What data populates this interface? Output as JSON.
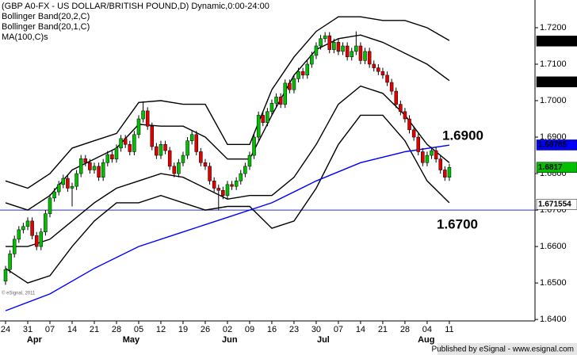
{
  "chart_data": {
    "type": "candlestick",
    "title": "(GBP A0-FX - US DOLLAR/BRITISH POUND,D) Dynamic,0:00-24:00",
    "watermark": "© eSignal, 2011",
    "footer": "Published by eSignal - www.esignal.com",
    "up_color": "#00c000",
    "down_color": "#e00000",
    "xlim": [
      -1.25,
      119.3
    ],
    "ylim": [
      1.6396,
      1.7276
    ],
    "grid": false,
    "yticks": [
      {
        "value": 1.64,
        "label": "1.6400"
      },
      {
        "value": 1.65,
        "label": "1.6500"
      },
      {
        "value": 1.66,
        "label": "1.6600"
      },
      {
        "value": 1.67,
        "label": "1.6700"
      },
      {
        "value": 1.68,
        "label": "1.6800"
      },
      {
        "value": 1.69,
        "label": "1.6900"
      },
      {
        "value": 1.7,
        "label": "1.7000"
      },
      {
        "value": 1.71,
        "label": "1.7100"
      },
      {
        "value": 1.72,
        "label": "1.7200"
      }
    ],
    "xticks": [
      {
        "value": 0,
        "label": "24"
      },
      {
        "value": 5,
        "label": "31"
      },
      {
        "value": 10,
        "label": "07"
      },
      {
        "value": 15,
        "label": "14"
      },
      {
        "value": 20,
        "label": "21"
      },
      {
        "value": 25,
        "label": "28"
      },
      {
        "value": 30,
        "label": "05"
      },
      {
        "value": 35,
        "label": "12"
      },
      {
        "value": 40,
        "label": "19"
      },
      {
        "value": 45,
        "label": "26"
      },
      {
        "value": 50,
        "label": "02"
      },
      {
        "value": 55,
        "label": "09"
      },
      {
        "value": 60,
        "label": "16"
      },
      {
        "value": 65,
        "label": "23"
      },
      {
        "value": 70,
        "label": "30"
      },
      {
        "value": 75,
        "label": "07"
      },
      {
        "value": 80,
        "label": "14"
      },
      {
        "value": 85,
        "label": "21"
      },
      {
        "value": 90,
        "label": "28"
      },
      {
        "value": 95,
        "label": "04"
      },
      {
        "value": 100,
        "label": "11"
      }
    ],
    "month_ticks": [
      {
        "value": 6.5,
        "label": "Apr"
      },
      {
        "value": 28.3,
        "label": "May"
      },
      {
        "value": 50.5,
        "label": "Jun"
      },
      {
        "value": 71.6,
        "label": "Jul"
      },
      {
        "value": 94.8,
        "label": "Aug"
      }
    ],
    "candles": {
      "open": [
        1.6505,
        1.6537,
        1.658,
        1.662,
        1.6646,
        1.6655,
        1.667,
        1.663,
        1.66,
        1.664,
        1.669,
        1.6733,
        1.675,
        1.677,
        1.6787,
        1.676,
        1.6765,
        1.68,
        1.6841,
        1.683,
        1.681,
        1.682,
        1.679,
        1.683,
        1.6852,
        1.684,
        1.687,
        1.6896,
        1.688,
        1.686,
        1.6907,
        1.695,
        1.6972,
        1.693,
        1.6874,
        1.685,
        1.688,
        1.6863,
        1.682,
        1.68,
        1.683,
        1.685,
        1.689,
        1.6907,
        1.686,
        1.683,
        1.682,
        1.678,
        1.676,
        1.6754,
        1.674,
        1.677,
        1.6765,
        1.678,
        1.68,
        1.682,
        1.685,
        1.69,
        1.696,
        1.694,
        1.697,
        1.6993,
        1.701,
        1.699,
        1.7048,
        1.703,
        1.706,
        1.708,
        1.707,
        1.71,
        1.7124,
        1.715,
        1.717,
        1.7178,
        1.714,
        1.716,
        1.7135,
        1.715,
        1.712,
        1.7135,
        1.715,
        1.711,
        1.7135,
        1.71,
        1.709,
        1.708,
        1.707,
        1.705,
        1.7026,
        1.699,
        1.697,
        1.695,
        1.692,
        1.69,
        1.686,
        1.683,
        1.685,
        1.6863,
        1.684,
        1.681,
        1.679
      ],
      "high": [
        1.6547,
        1.659,
        1.663,
        1.6656,
        1.6665,
        1.668,
        1.668,
        1.664,
        1.665,
        1.67,
        1.6743,
        1.676,
        1.678,
        1.6797,
        1.6797,
        1.6775,
        1.681,
        1.6851,
        1.6851,
        1.684,
        1.683,
        1.683,
        1.684,
        1.6862,
        1.6862,
        1.688,
        1.6906,
        1.6906,
        1.689,
        1.6917,
        1.696,
        1.6998,
        1.6982,
        1.694,
        1.6884,
        1.689,
        1.689,
        1.6873,
        1.683,
        1.684,
        1.686,
        1.69,
        1.6917,
        1.6917,
        1.687,
        1.684,
        1.683,
        1.679,
        1.677,
        1.6764,
        1.678,
        1.678,
        1.679,
        1.681,
        1.683,
        1.686,
        1.691,
        1.697,
        1.697,
        1.698,
        1.7003,
        1.702,
        1.702,
        1.7058,
        1.7058,
        1.707,
        1.709,
        1.709,
        1.711,
        1.7134,
        1.716,
        1.718,
        1.7188,
        1.7188,
        1.717,
        1.717,
        1.716,
        1.716,
        1.7145,
        1.719,
        1.716,
        1.7145,
        1.7145,
        1.711,
        1.71,
        1.709,
        1.708,
        1.706,
        1.7036,
        1.7,
        1.698,
        1.696,
        1.693,
        1.691,
        1.687,
        1.686,
        1.6873,
        1.6873,
        1.685,
        1.682,
        1.6827
      ],
      "low": [
        1.6495,
        1.6527,
        1.657,
        1.661,
        1.6636,
        1.6645,
        1.662,
        1.659,
        1.659,
        1.663,
        1.668,
        1.6723,
        1.674,
        1.676,
        1.675,
        1.671,
        1.6755,
        1.679,
        1.682,
        1.68,
        1.68,
        1.678,
        1.678,
        1.682,
        1.683,
        1.683,
        1.686,
        1.687,
        1.685,
        1.685,
        1.6897,
        1.694,
        1.692,
        1.6864,
        1.684,
        1.684,
        1.6853,
        1.681,
        1.679,
        1.679,
        1.682,
        1.684,
        1.688,
        1.685,
        1.682,
        1.681,
        1.677,
        1.675,
        1.67,
        1.673,
        1.673,
        1.6755,
        1.6755,
        1.677,
        1.679,
        1.681,
        1.684,
        1.689,
        1.693,
        1.693,
        1.696,
        1.6983,
        1.698,
        1.698,
        1.702,
        1.702,
        1.705,
        1.706,
        1.706,
        1.709,
        1.7114,
        1.714,
        1.716,
        1.713,
        1.713,
        1.7125,
        1.7125,
        1.711,
        1.711,
        1.7125,
        1.71,
        1.71,
        1.709,
        1.708,
        1.707,
        1.706,
        1.704,
        1.7016,
        1.698,
        1.696,
        1.694,
        1.691,
        1.689,
        1.685,
        1.682,
        1.682,
        1.684,
        1.683,
        1.68,
        1.678,
        1.678
      ],
      "close": [
        1.6537,
        1.658,
        1.662,
        1.6646,
        1.6655,
        1.667,
        1.663,
        1.66,
        1.664,
        1.669,
        1.6733,
        1.675,
        1.677,
        1.6787,
        1.676,
        1.6765,
        1.68,
        1.6841,
        1.683,
        1.681,
        1.682,
        1.679,
        1.683,
        1.6852,
        1.684,
        1.687,
        1.6896,
        1.688,
        1.686,
        1.6907,
        1.695,
        1.6972,
        1.693,
        1.6874,
        1.685,
        1.688,
        1.6863,
        1.682,
        1.68,
        1.683,
        1.685,
        1.689,
        1.6907,
        1.686,
        1.683,
        1.682,
        1.678,
        1.676,
        1.6754,
        1.674,
        1.677,
        1.6765,
        1.678,
        1.68,
        1.682,
        1.685,
        1.69,
        1.696,
        1.694,
        1.697,
        1.6993,
        1.701,
        1.699,
        1.7048,
        1.703,
        1.706,
        1.708,
        1.707,
        1.71,
        1.7124,
        1.715,
        1.717,
        1.7178,
        1.714,
        1.716,
        1.7135,
        1.715,
        1.712,
        1.7135,
        1.715,
        1.711,
        1.7135,
        1.71,
        1.709,
        1.708,
        1.707,
        1.705,
        1.7026,
        1.699,
        1.697,
        1.695,
        1.692,
        1.69,
        1.686,
        1.683,
        1.685,
        1.6863,
        1.684,
        1.681,
        1.679,
        1.6817
      ]
    },
    "series": [
      {
        "name": "Bollinger Band(20,2,C)",
        "color": "#000000",
        "x": [
          0,
          5,
          10,
          15,
          20,
          25,
          30,
          35,
          40,
          45,
          50,
          55,
          60,
          65,
          70,
          75,
          80,
          85,
          90,
          95,
          100
        ],
        "upper": [
          1.678,
          1.676,
          1.68,
          1.687,
          1.689,
          1.691,
          1.6995,
          1.7,
          1.699,
          1.699,
          1.688,
          1.688,
          1.703,
          1.712,
          1.719,
          1.723,
          1.723,
          1.722,
          1.722,
          1.72,
          1.7165
        ],
        "lower": [
          1.654,
          1.65,
          1.652,
          1.66,
          1.667,
          1.672,
          1.672,
          1.674,
          1.672,
          1.67,
          1.671,
          1.671,
          1.665,
          1.667,
          1.676,
          1.688,
          1.696,
          1.696,
          1.689,
          1.678,
          1.672
        ]
      },
      {
        "name": "Bollinger Band(20,1,C)",
        "color": "#000000",
        "x": [
          0,
          5,
          10,
          15,
          20,
          25,
          30,
          35,
          40,
          45,
          50,
          55,
          60,
          65,
          70,
          75,
          80,
          85,
          90,
          95,
          100
        ],
        "upper": [
          1.672,
          1.67,
          1.674,
          1.681,
          1.684,
          1.687,
          1.6935,
          1.693,
          1.693,
          1.69,
          1.684,
          1.684,
          1.696,
          1.707,
          1.714,
          1.717,
          1.718,
          1.716,
          1.713,
          1.71,
          1.7055
        ],
        "lower": [
          1.66,
          1.66,
          1.662,
          1.667,
          1.672,
          1.676,
          1.678,
          1.68,
          1.679,
          1.676,
          1.673,
          1.674,
          1.674,
          1.679,
          1.688,
          1.699,
          1.704,
          1.702,
          1.696,
          1.688,
          1.683
        ]
      },
      {
        "name": "MA(100,C)s",
        "color": "#0000ff",
        "x": [
          0,
          10,
          20,
          30,
          40,
          50,
          60,
          70,
          80,
          90,
          100
        ],
        "values": [
          1.6424,
          1.647,
          1.654,
          1.66,
          1.664,
          1.668,
          1.672,
          1.678,
          1.683,
          1.686,
          1.6878
        ]
      }
    ],
    "hline": 1.67,
    "hline_color": "#3030a0",
    "annotations": [
      "1.6900",
      "1.6700"
    ],
    "value_tags": [
      {
        "value": 1.71634,
        "color": "#000000",
        "text_color": "#ffffff"
      },
      {
        "value": 1.705148,
        "color": "#000000",
        "text_color": "#ffffff"
      },
      {
        "value": 1.68785,
        "color": "#0000ff",
        "text_color": "#ffffff"
      },
      {
        "value": 1.6817,
        "color": "#00c000",
        "text_color": "#ffffff"
      },
      {
        "value": 1.671554,
        "color": "#ffffff",
        "text_color": "#000000"
      }
    ]
  }
}
